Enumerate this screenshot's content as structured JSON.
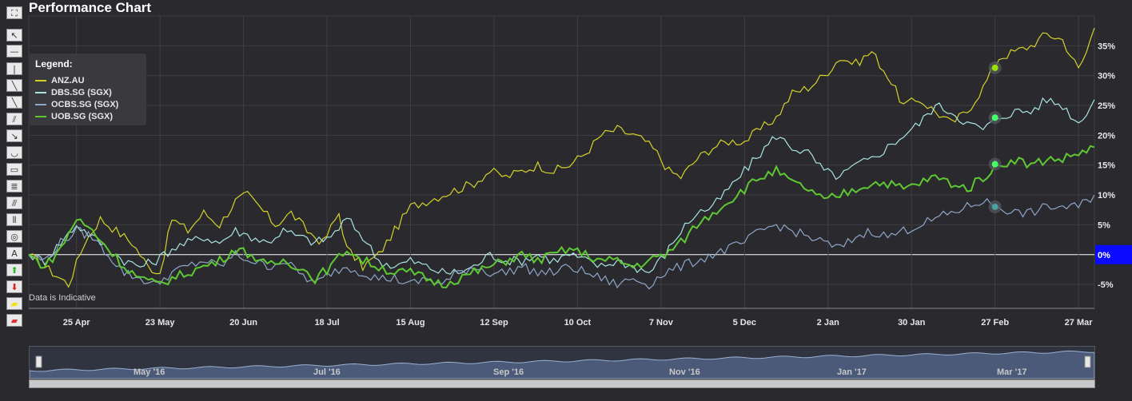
{
  "title": "Performance Chart",
  "note": "Data is Indicative",
  "toolbar": {
    "tools": [
      {
        "name": "fullscreen-icon",
        "glyph": "⛶"
      },
      {
        "name": "pointer-icon",
        "glyph": "↖"
      },
      {
        "name": "horizontal-line-icon",
        "glyph": "—"
      },
      {
        "name": "vertical-line-icon",
        "glyph": "|"
      },
      {
        "name": "trend-line-icon",
        "glyph": "╲"
      },
      {
        "name": "ray-icon",
        "glyph": "╲"
      },
      {
        "name": "parallel-lines-icon",
        "glyph": "⫽"
      },
      {
        "name": "arrow-line-icon",
        "glyph": "↘"
      },
      {
        "name": "arc-icon",
        "glyph": "◡"
      },
      {
        "name": "rectangle-icon",
        "glyph": "▭"
      },
      {
        "name": "fibonacci-retracement-icon",
        "glyph": "≣"
      },
      {
        "name": "fan-icon",
        "glyph": "⫻"
      },
      {
        "name": "time-zones-icon",
        "glyph": "⦀"
      },
      {
        "name": "cycles-icon",
        "glyph": "◎"
      },
      {
        "name": "text-annotation-icon",
        "glyph": "A"
      },
      {
        "name": "up-arrow-icon",
        "glyph": "⬆"
      },
      {
        "name": "down-arrow-icon",
        "glyph": "⬇"
      },
      {
        "name": "highlighter-icon",
        "glyph": "▰"
      },
      {
        "name": "eraser-icon",
        "glyph": "▰"
      }
    ]
  },
  "legend": {
    "title": "Legend:",
    "items": [
      {
        "label": "ANZ.AU",
        "color": "#d4d22a"
      },
      {
        "label": "DBS.SG (SGX)",
        "color": "#a8e4e0"
      },
      {
        "label": "OCBS.SG (SGX)",
        "color": "#8ea6c8"
      },
      {
        "label": "UOB.SG (SGX)",
        "color": "#5ec832"
      }
    ]
  },
  "current_value_label": "0%",
  "navigator": {
    "labels": [
      "May '16",
      "Jul '16",
      "Sep '16",
      "Nov '16",
      "Jan '17",
      "Mar '17"
    ]
  },
  "chart_data": {
    "type": "line",
    "title": "Performance Chart",
    "xlabel": "",
    "ylabel": "",
    "ylim": [
      -9,
      40
    ],
    "yticks": [
      "-5%",
      "0%",
      "5%",
      "10%",
      "15%",
      "20%",
      "25%",
      "30%",
      "35%"
    ],
    "ytick_values": [
      -5,
      0,
      5,
      10,
      15,
      20,
      25,
      30,
      35
    ],
    "xticks": [
      "25 Apr",
      "23 May",
      "20 Jun",
      "18 Jul",
      "15 Aug",
      "12 Sep",
      "10 Oct",
      "7 Nov",
      "5 Dec",
      "2 Jan",
      "30 Jan",
      "27 Feb",
      "27 Mar"
    ],
    "xtick_index": [
      12,
      33,
      54,
      75,
      96,
      117,
      138,
      159,
      180,
      201,
      222,
      243,
      264
    ],
    "grid": true,
    "legend_position": "top-left",
    "x_count": 269,
    "series": [
      {
        "name": "ANZ.AU",
        "color": "#d4d22a",
        "anchors": [
          [
            0,
            0
          ],
          [
            6,
            -3
          ],
          [
            10,
            -5
          ],
          [
            14,
            2
          ],
          [
            18,
            6
          ],
          [
            22,
            4
          ],
          [
            26,
            2
          ],
          [
            30,
            -2
          ],
          [
            33,
            -3
          ],
          [
            36,
            6
          ],
          [
            40,
            4
          ],
          [
            44,
            7
          ],
          [
            48,
            5
          ],
          [
            52,
            9
          ],
          [
            55,
            10
          ],
          [
            58,
            8
          ],
          [
            62,
            5
          ],
          [
            66,
            7
          ],
          [
            70,
            4
          ],
          [
            74,
            2
          ],
          [
            78,
            7
          ],
          [
            80,
            1
          ],
          [
            84,
            -2
          ],
          [
            88,
            0
          ],
          [
            92,
            4
          ],
          [
            96,
            8
          ],
          [
            100,
            9
          ],
          [
            104,
            10
          ],
          [
            108,
            11
          ],
          [
            112,
            12
          ],
          [
            116,
            14
          ],
          [
            120,
            13
          ],
          [
            124,
            14
          ],
          [
            128,
            15
          ],
          [
            132,
            14
          ],
          [
            136,
            15
          ],
          [
            140,
            17
          ],
          [
            144,
            20
          ],
          [
            148,
            21
          ],
          [
            152,
            20
          ],
          [
            155,
            19
          ],
          [
            158,
            17
          ],
          [
            161,
            14
          ],
          [
            164,
            13
          ],
          [
            168,
            16
          ],
          [
            172,
            18
          ],
          [
            176,
            19
          ],
          [
            180,
            19
          ],
          [
            184,
            21
          ],
          [
            188,
            23
          ],
          [
            192,
            27
          ],
          [
            196,
            28
          ],
          [
            200,
            30
          ],
          [
            204,
            33
          ],
          [
            208,
            32
          ],
          [
            212,
            34
          ],
          [
            216,
            30
          ],
          [
            220,
            25
          ],
          [
            224,
            26
          ],
          [
            228,
            24
          ],
          [
            232,
            22
          ],
          [
            236,
            24
          ],
          [
            240,
            28
          ],
          [
            244,
            33
          ],
          [
            248,
            34
          ],
          [
            252,
            35
          ],
          [
            256,
            37
          ],
          [
            260,
            36
          ],
          [
            264,
            31
          ],
          [
            266,
            34
          ],
          [
            268,
            38
          ]
        ]
      },
      {
        "name": "DBS.SG (SGX)",
        "color": "#a8e4e0",
        "anchors": [
          [
            0,
            0
          ],
          [
            4,
            -1
          ],
          [
            8,
            2
          ],
          [
            12,
            5
          ],
          [
            16,
            3
          ],
          [
            20,
            1
          ],
          [
            24,
            -1
          ],
          [
            28,
            -2
          ],
          [
            32,
            -1
          ],
          [
            36,
            1
          ],
          [
            40,
            2
          ],
          [
            44,
            3
          ],
          [
            48,
            2
          ],
          [
            52,
            4
          ],
          [
            56,
            3
          ],
          [
            60,
            2
          ],
          [
            64,
            4
          ],
          [
            68,
            3
          ],
          [
            72,
            2
          ],
          [
            76,
            3
          ],
          [
            80,
            6
          ],
          [
            84,
            3
          ],
          [
            88,
            -1
          ],
          [
            92,
            -2
          ],
          [
            96,
            -1
          ],
          [
            100,
            -2
          ],
          [
            104,
            -3
          ],
          [
            108,
            -3
          ],
          [
            112,
            -2
          ],
          [
            116,
            0
          ],
          [
            120,
            -1
          ],
          [
            124,
            -1
          ],
          [
            128,
            0
          ],
          [
            132,
            -1
          ],
          [
            136,
            0
          ],
          [
            140,
            -1
          ],
          [
            144,
            -2
          ],
          [
            148,
            -1
          ],
          [
            152,
            -2
          ],
          [
            156,
            -3
          ],
          [
            160,
            0
          ],
          [
            164,
            4
          ],
          [
            168,
            7
          ],
          [
            172,
            8
          ],
          [
            176,
            11
          ],
          [
            180,
            14
          ],
          [
            184,
            17
          ],
          [
            188,
            20
          ],
          [
            192,
            18
          ],
          [
            196,
            17
          ],
          [
            200,
            14
          ],
          [
            204,
            13
          ],
          [
            208,
            15
          ],
          [
            212,
            16
          ],
          [
            216,
            18
          ],
          [
            220,
            20
          ],
          [
            224,
            22
          ],
          [
            228,
            25
          ],
          [
            232,
            24
          ],
          [
            236,
            22
          ],
          [
            240,
            21
          ],
          [
            244,
            23
          ],
          [
            248,
            24
          ],
          [
            252,
            24
          ],
          [
            256,
            26
          ],
          [
            260,
            25
          ],
          [
            264,
            22
          ],
          [
            266,
            24
          ],
          [
            268,
            26
          ]
        ]
      },
      {
        "name": "OCBS.SG (SGX)",
        "color": "#8ea6c8",
        "anchors": [
          [
            0,
            0
          ],
          [
            4,
            -1
          ],
          [
            8,
            2
          ],
          [
            12,
            4
          ],
          [
            16,
            3
          ],
          [
            20,
            0
          ],
          [
            24,
            -3
          ],
          [
            28,
            -4
          ],
          [
            32,
            -5
          ],
          [
            36,
            -3
          ],
          [
            40,
            -2
          ],
          [
            44,
            -1
          ],
          [
            48,
            -2
          ],
          [
            52,
            0
          ],
          [
            56,
            -1
          ],
          [
            60,
            -2
          ],
          [
            64,
            -1
          ],
          [
            68,
            -3
          ],
          [
            72,
            -5
          ],
          [
            76,
            -3
          ],
          [
            80,
            -2
          ],
          [
            84,
            -3
          ],
          [
            88,
            -4
          ],
          [
            92,
            -4
          ],
          [
            96,
            -5
          ],
          [
            100,
            -4
          ],
          [
            104,
            -5
          ],
          [
            108,
            -3
          ],
          [
            112,
            -2
          ],
          [
            116,
            -3
          ],
          [
            120,
            -3
          ],
          [
            124,
            -2
          ],
          [
            128,
            -3
          ],
          [
            132,
            -3
          ],
          [
            136,
            -2
          ],
          [
            140,
            -3
          ],
          [
            144,
            -4
          ],
          [
            148,
            -5
          ],
          [
            152,
            -4
          ],
          [
            156,
            -5
          ],
          [
            160,
            -3
          ],
          [
            164,
            -2
          ],
          [
            168,
            -1
          ],
          [
            172,
            0
          ],
          [
            176,
            1
          ],
          [
            180,
            2
          ],
          [
            184,
            4
          ],
          [
            188,
            5
          ],
          [
            192,
            4
          ],
          [
            196,
            3
          ],
          [
            200,
            2
          ],
          [
            204,
            1
          ],
          [
            208,
            3
          ],
          [
            212,
            4
          ],
          [
            216,
            3
          ],
          [
            220,
            4
          ],
          [
            224,
            5
          ],
          [
            228,
            6
          ],
          [
            232,
            7
          ],
          [
            236,
            8
          ],
          [
            240,
            9
          ],
          [
            244,
            8
          ],
          [
            248,
            7
          ],
          [
            252,
            7
          ],
          [
            256,
            8
          ],
          [
            260,
            8
          ],
          [
            264,
            8
          ],
          [
            268,
            10
          ]
        ]
      },
      {
        "name": "UOB.SG (SGX)",
        "color": "#5ec832",
        "anchors": [
          [
            0,
            0
          ],
          [
            4,
            -2
          ],
          [
            8,
            1
          ],
          [
            12,
            6
          ],
          [
            16,
            4
          ],
          [
            20,
            1
          ],
          [
            24,
            -2
          ],
          [
            28,
            -4
          ],
          [
            32,
            -5
          ],
          [
            36,
            -4
          ],
          [
            40,
            -3
          ],
          [
            44,
            -2
          ],
          [
            48,
            -1
          ],
          [
            52,
            1
          ],
          [
            56,
            0
          ],
          [
            60,
            -2
          ],
          [
            64,
            -1
          ],
          [
            68,
            -2
          ],
          [
            72,
            -4
          ],
          [
            76,
            -2
          ],
          [
            80,
            1
          ],
          [
            84,
            -1
          ],
          [
            88,
            -2
          ],
          [
            92,
            -3
          ],
          [
            96,
            -3
          ],
          [
            100,
            -4
          ],
          [
            104,
            -5
          ],
          [
            108,
            -4
          ],
          [
            112,
            -3
          ],
          [
            116,
            -2
          ],
          [
            120,
            -1
          ],
          [
            124,
            0
          ],
          [
            128,
            -1
          ],
          [
            132,
            0
          ],
          [
            136,
            1
          ],
          [
            140,
            0
          ],
          [
            144,
            -1
          ],
          [
            148,
            -1
          ],
          [
            152,
            -2
          ],
          [
            156,
            -1
          ],
          [
            160,
            0
          ],
          [
            164,
            2
          ],
          [
            168,
            5
          ],
          [
            172,
            7
          ],
          [
            176,
            9
          ],
          [
            180,
            11
          ],
          [
            184,
            13
          ],
          [
            188,
            14
          ],
          [
            192,
            12
          ],
          [
            196,
            11
          ],
          [
            200,
            9
          ],
          [
            204,
            10
          ],
          [
            208,
            11
          ],
          [
            212,
            12
          ],
          [
            216,
            12
          ],
          [
            220,
            11
          ],
          [
            224,
            12
          ],
          [
            228,
            13
          ],
          [
            232,
            12
          ],
          [
            236,
            11
          ],
          [
            240,
            13
          ],
          [
            244,
            15
          ],
          [
            248,
            16
          ],
          [
            252,
            15
          ],
          [
            256,
            16
          ],
          [
            260,
            16
          ],
          [
            264,
            17
          ],
          [
            268,
            18
          ]
        ]
      }
    ]
  }
}
